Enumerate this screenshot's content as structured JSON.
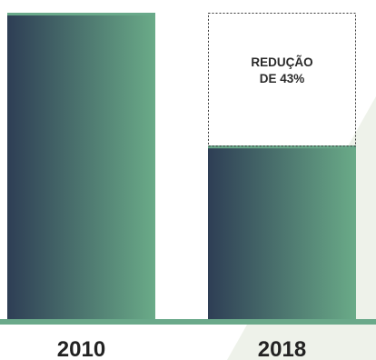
{
  "chart_data": {
    "type": "bar",
    "categories": [
      "2010",
      "2018"
    ],
    "values": [
      100,
      57
    ],
    "ylim": [
      0,
      100
    ],
    "grid": false,
    "annotation": {
      "lines": [
        "REDUÇÃO",
        "DE 43%"
      ],
      "category": "2018"
    }
  },
  "colors": {
    "bar_gradient_start": "#2e3e55",
    "bar_gradient_end": "#6aab88",
    "top_edge": "#69a98a",
    "baseline": "#6aa98a",
    "background_shape": "#eef2ea",
    "annotation_border": "#333333"
  }
}
